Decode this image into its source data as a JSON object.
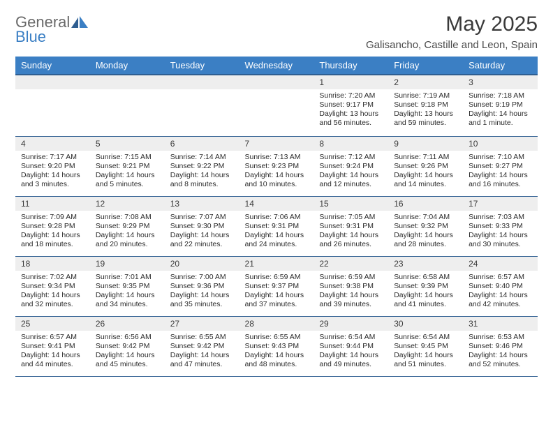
{
  "brand": {
    "name_top": "General",
    "name_bottom": "Blue"
  },
  "title": "May 2025",
  "subtitle": "Galisancho, Castille and Leon, Spain",
  "colors": {
    "header_bg": "#3b7fc4",
    "header_fg": "#ffffff",
    "daynum_bg": "#eeeeee",
    "rule": "#2e5e91",
    "text": "#2b2b2b"
  },
  "weekdays": [
    "Sunday",
    "Monday",
    "Tuesday",
    "Wednesday",
    "Thursday",
    "Friday",
    "Saturday"
  ],
  "weeks": [
    [
      null,
      null,
      null,
      null,
      {
        "n": "1",
        "sr": "7:20 AM",
        "ss": "9:17 PM",
        "dl": "13 hours and 56 minutes."
      },
      {
        "n": "2",
        "sr": "7:19 AM",
        "ss": "9:18 PM",
        "dl": "13 hours and 59 minutes."
      },
      {
        "n": "3",
        "sr": "7:18 AM",
        "ss": "9:19 PM",
        "dl": "14 hours and 1 minute."
      }
    ],
    [
      {
        "n": "4",
        "sr": "7:17 AM",
        "ss": "9:20 PM",
        "dl": "14 hours and 3 minutes."
      },
      {
        "n": "5",
        "sr": "7:15 AM",
        "ss": "9:21 PM",
        "dl": "14 hours and 5 minutes."
      },
      {
        "n": "6",
        "sr": "7:14 AM",
        "ss": "9:22 PM",
        "dl": "14 hours and 8 minutes."
      },
      {
        "n": "7",
        "sr": "7:13 AM",
        "ss": "9:23 PM",
        "dl": "14 hours and 10 minutes."
      },
      {
        "n": "8",
        "sr": "7:12 AM",
        "ss": "9:24 PM",
        "dl": "14 hours and 12 minutes."
      },
      {
        "n": "9",
        "sr": "7:11 AM",
        "ss": "9:26 PM",
        "dl": "14 hours and 14 minutes."
      },
      {
        "n": "10",
        "sr": "7:10 AM",
        "ss": "9:27 PM",
        "dl": "14 hours and 16 minutes."
      }
    ],
    [
      {
        "n": "11",
        "sr": "7:09 AM",
        "ss": "9:28 PM",
        "dl": "14 hours and 18 minutes."
      },
      {
        "n": "12",
        "sr": "7:08 AM",
        "ss": "9:29 PM",
        "dl": "14 hours and 20 minutes."
      },
      {
        "n": "13",
        "sr": "7:07 AM",
        "ss": "9:30 PM",
        "dl": "14 hours and 22 minutes."
      },
      {
        "n": "14",
        "sr": "7:06 AM",
        "ss": "9:31 PM",
        "dl": "14 hours and 24 minutes."
      },
      {
        "n": "15",
        "sr": "7:05 AM",
        "ss": "9:31 PM",
        "dl": "14 hours and 26 minutes."
      },
      {
        "n": "16",
        "sr": "7:04 AM",
        "ss": "9:32 PM",
        "dl": "14 hours and 28 minutes."
      },
      {
        "n": "17",
        "sr": "7:03 AM",
        "ss": "9:33 PM",
        "dl": "14 hours and 30 minutes."
      }
    ],
    [
      {
        "n": "18",
        "sr": "7:02 AM",
        "ss": "9:34 PM",
        "dl": "14 hours and 32 minutes."
      },
      {
        "n": "19",
        "sr": "7:01 AM",
        "ss": "9:35 PM",
        "dl": "14 hours and 34 minutes."
      },
      {
        "n": "20",
        "sr": "7:00 AM",
        "ss": "9:36 PM",
        "dl": "14 hours and 35 minutes."
      },
      {
        "n": "21",
        "sr": "6:59 AM",
        "ss": "9:37 PM",
        "dl": "14 hours and 37 minutes."
      },
      {
        "n": "22",
        "sr": "6:59 AM",
        "ss": "9:38 PM",
        "dl": "14 hours and 39 minutes."
      },
      {
        "n": "23",
        "sr": "6:58 AM",
        "ss": "9:39 PM",
        "dl": "14 hours and 41 minutes."
      },
      {
        "n": "24",
        "sr": "6:57 AM",
        "ss": "9:40 PM",
        "dl": "14 hours and 42 minutes."
      }
    ],
    [
      {
        "n": "25",
        "sr": "6:57 AM",
        "ss": "9:41 PM",
        "dl": "14 hours and 44 minutes."
      },
      {
        "n": "26",
        "sr": "6:56 AM",
        "ss": "9:42 PM",
        "dl": "14 hours and 45 minutes."
      },
      {
        "n": "27",
        "sr": "6:55 AM",
        "ss": "9:42 PM",
        "dl": "14 hours and 47 minutes."
      },
      {
        "n": "28",
        "sr": "6:55 AM",
        "ss": "9:43 PM",
        "dl": "14 hours and 48 minutes."
      },
      {
        "n": "29",
        "sr": "6:54 AM",
        "ss": "9:44 PM",
        "dl": "14 hours and 49 minutes."
      },
      {
        "n": "30",
        "sr": "6:54 AM",
        "ss": "9:45 PM",
        "dl": "14 hours and 51 minutes."
      },
      {
        "n": "31",
        "sr": "6:53 AM",
        "ss": "9:46 PM",
        "dl": "14 hours and 52 minutes."
      }
    ]
  ],
  "labels": {
    "sunrise": "Sunrise:",
    "sunset": "Sunset:",
    "daylight": "Daylight:"
  }
}
